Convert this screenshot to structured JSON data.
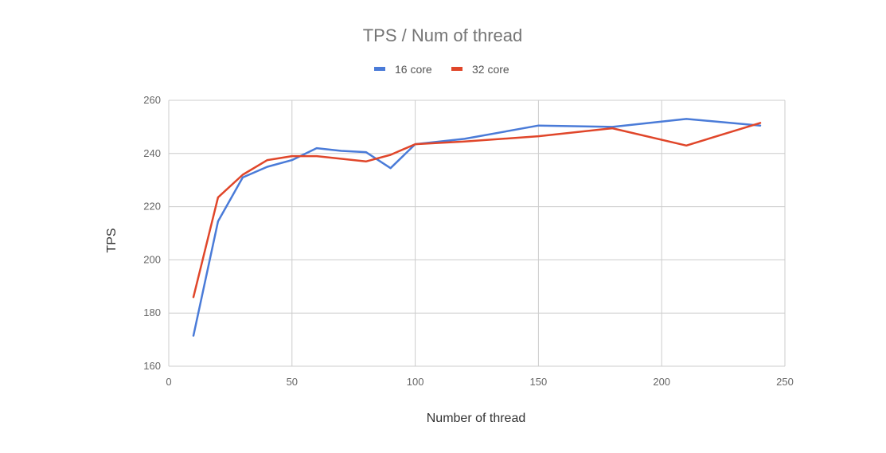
{
  "chart_data": {
    "type": "line",
    "title": "TPS / Num of thread",
    "xlabel": "Number of thread",
    "ylabel": "TPS",
    "xlim": [
      0,
      250
    ],
    "ylim": [
      160,
      260
    ],
    "xticks": [
      0,
      50,
      100,
      150,
      200,
      250
    ],
    "yticks": [
      160,
      180,
      200,
      220,
      240,
      260
    ],
    "xtick_labels": [
      "0",
      "50",
      "100",
      "150",
      "200",
      "250"
    ],
    "ytick_labels": [
      "160",
      "180",
      "200",
      "220",
      "240",
      "260"
    ],
    "grid": true,
    "legend_position": "top-center",
    "series": [
      {
        "name": "16 core",
        "color": "#4a7bd8",
        "x": [
          10,
          20,
          30,
          40,
          50,
          60,
          70,
          80,
          90,
          100,
          120,
          150,
          180,
          210,
          240
        ],
        "y": [
          171.5,
          214.5,
          231,
          235,
          237.5,
          242,
          241,
          240.5,
          234.5,
          243.5,
          245.5,
          250.5,
          250,
          253,
          250.5
        ]
      },
      {
        "name": "32 core",
        "color": "#e0462a",
        "x": [
          10,
          20,
          30,
          40,
          50,
          60,
          80,
          90,
          100,
          120,
          150,
          180,
          210,
          240
        ],
        "y": [
          186,
          223.5,
          232,
          237.5,
          239,
          239,
          237,
          239.5,
          243.5,
          244.5,
          246.5,
          249.5,
          243,
          251.5
        ]
      }
    ]
  }
}
